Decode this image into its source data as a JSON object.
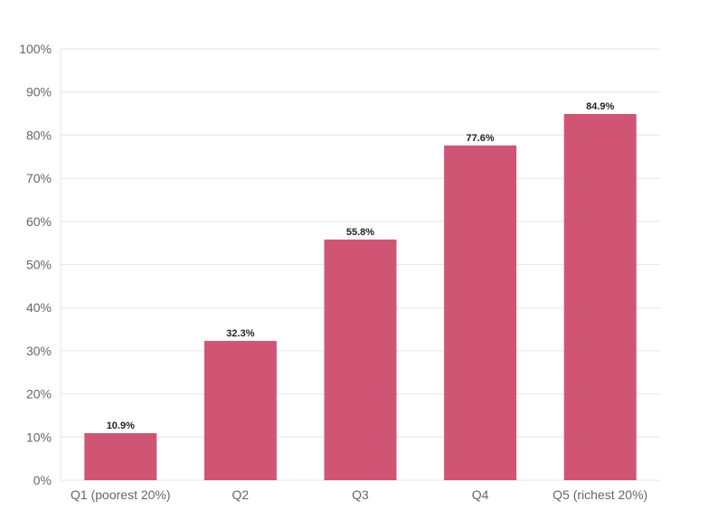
{
  "chart_data": {
    "type": "bar",
    "title": "",
    "xlabel": "",
    "ylabel": "",
    "categories": [
      "Q1 (poorest 20%)",
      "Q2",
      "Q3",
      "Q4",
      "Q5 (richest 20%)"
    ],
    "values": [
      10.9,
      32.3,
      55.8,
      77.6,
      84.9
    ],
    "data_labels": [
      "10.9%",
      "32.3%",
      "55.8%",
      "77.6%",
      "84.9%"
    ],
    "ylim": [
      0,
      100
    ],
    "y_ticks": [
      0,
      10,
      20,
      30,
      40,
      50,
      60,
      70,
      80,
      90,
      100
    ],
    "y_tick_labels": [
      "0%",
      "10%",
      "20%",
      "30%",
      "40%",
      "50%",
      "60%",
      "70%",
      "80%",
      "90%",
      "100%"
    ],
    "grid": true,
    "legend": "none",
    "bar_color": "#d05575"
  }
}
